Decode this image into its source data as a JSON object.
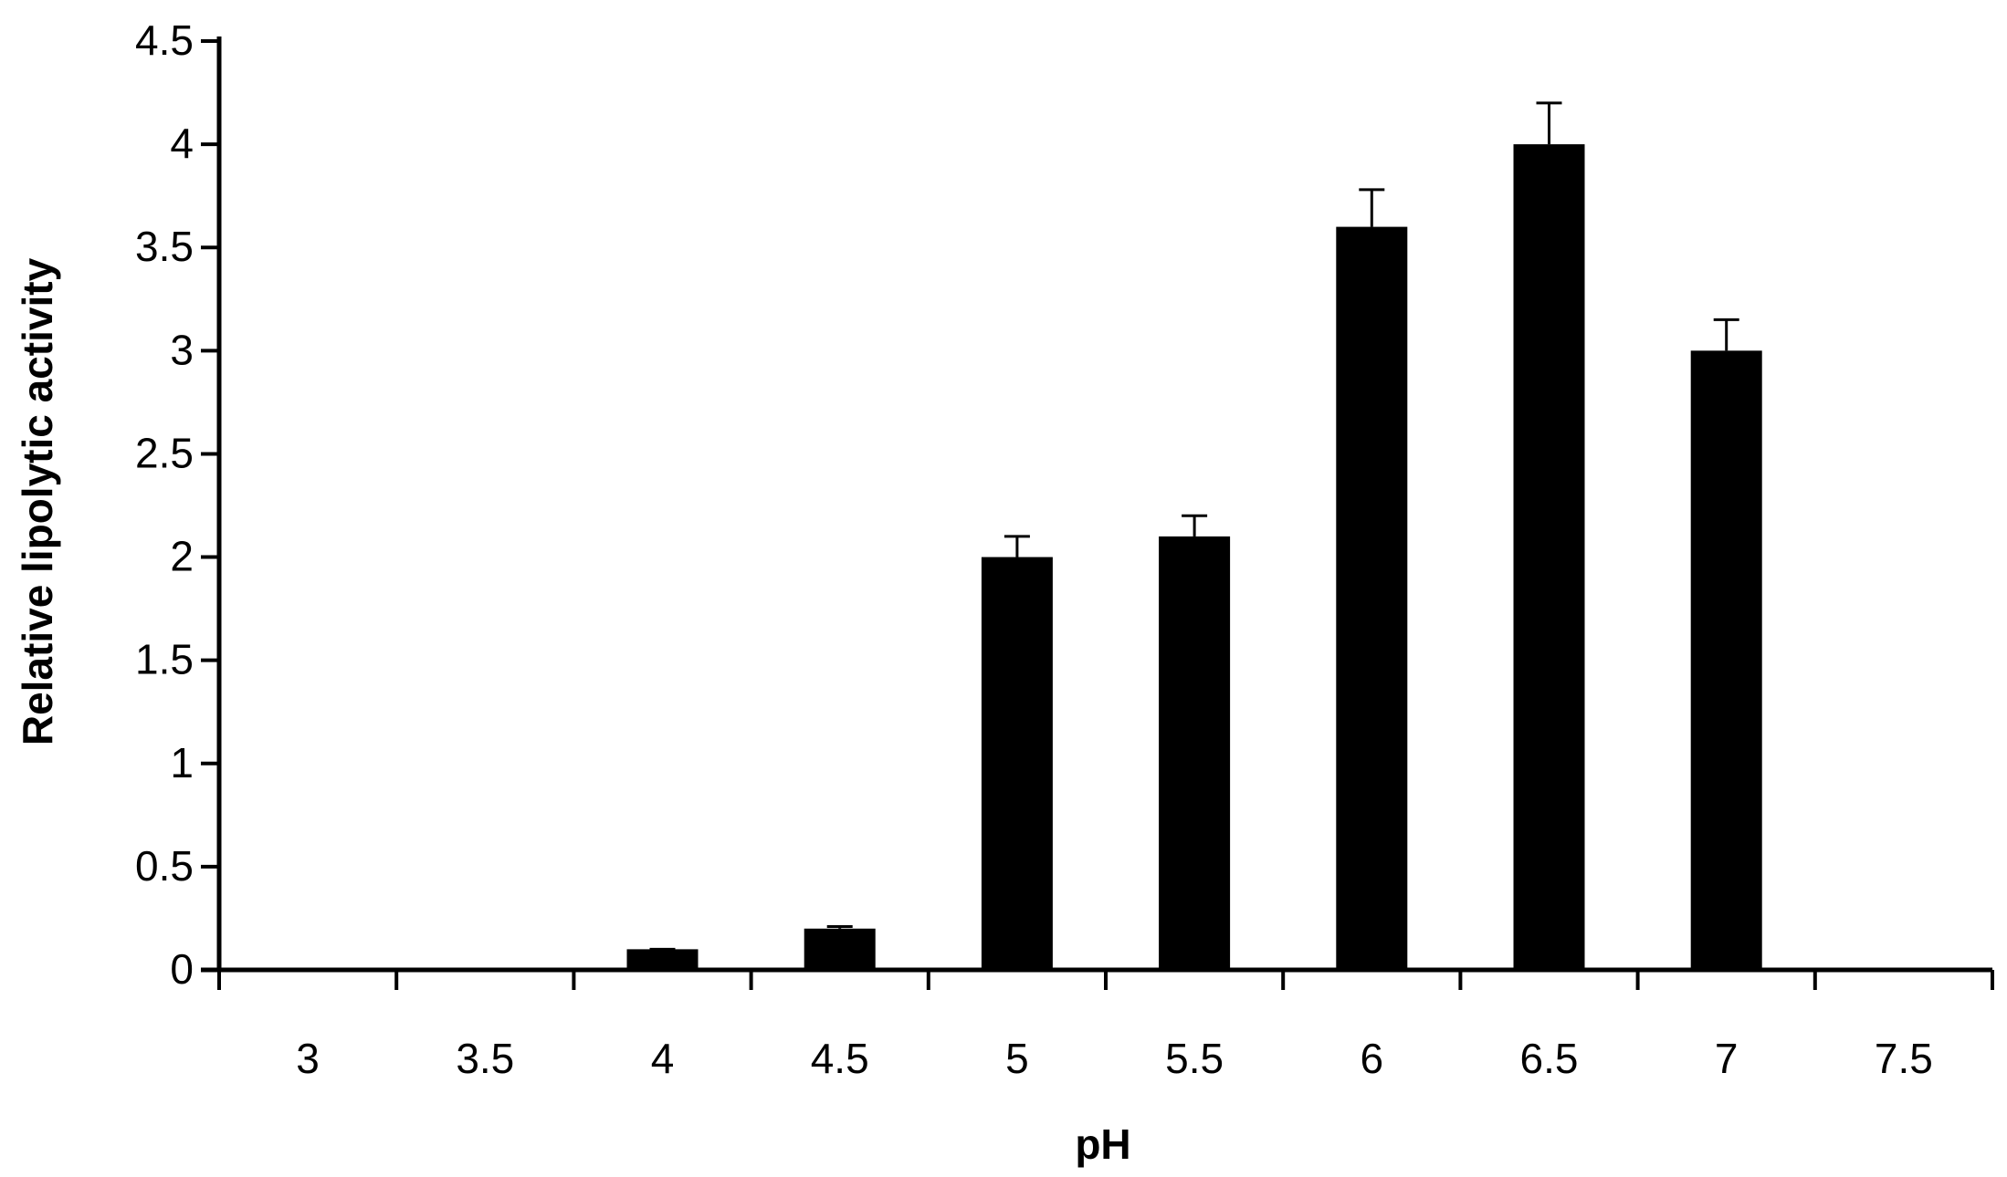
{
  "chart_data": {
    "type": "bar",
    "title": "",
    "xlabel": "pH",
    "ylabel": "Relative lipolytic activity",
    "categories": [
      "3",
      "3.5",
      "4",
      "4.5",
      "5",
      "5.5",
      "6",
      "6.5",
      "7",
      "7.5"
    ],
    "series": [
      {
        "values": [
          0,
          0,
          0.1,
          0.2,
          2.0,
          2.1,
          3.6,
          4.0,
          3.0,
          0
        ],
        "error": [
          0,
          0,
          0.0,
          0.01,
          0.1,
          0.1,
          0.18,
          0.2,
          0.15,
          0
        ],
        "color": "#000000"
      }
    ],
    "ylim": [
      0,
      4.5
    ],
    "yticks": [
      "0",
      "0.5",
      "1",
      "1.5",
      "2",
      "2.5",
      "3",
      "3.5",
      "4",
      "4.5"
    ],
    "grid": false,
    "legend": "none"
  }
}
